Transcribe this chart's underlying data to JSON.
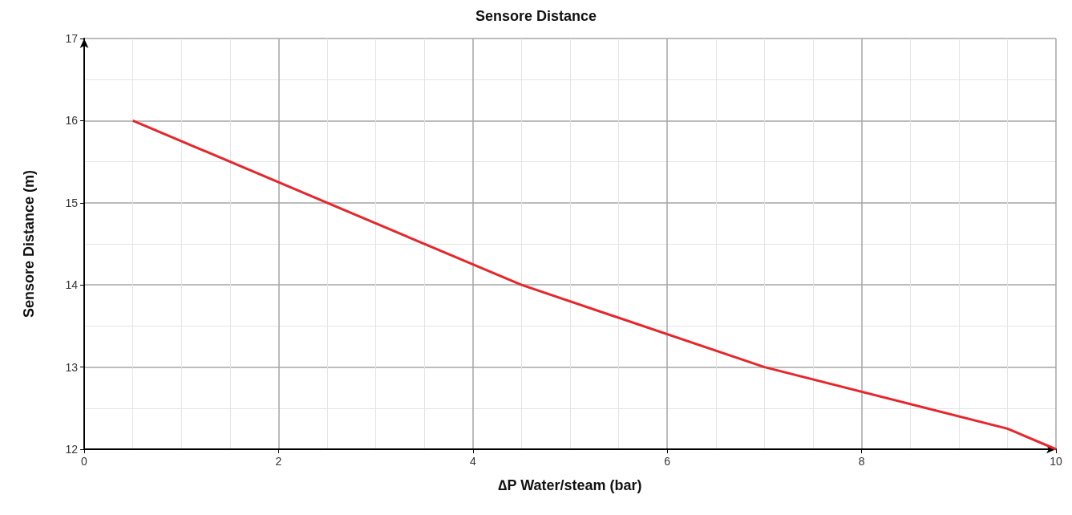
{
  "chart_data": {
    "type": "line",
    "title": "Sensore Distance",
    "xlabel": "∆P Water/steam (bar)",
    "ylabel": "Sensore Distance (m)",
    "x": [
      0.5,
      4.5,
      7,
      9.5,
      10
    ],
    "series": [
      {
        "color": "#e8252a",
        "values": [
          16,
          14,
          13,
          12.25,
          12
        ]
      }
    ],
    "xlim": [
      0,
      10
    ],
    "xticks": [
      0,
      2,
      4,
      6,
      8,
      10
    ],
    "ylim": [
      12,
      17
    ],
    "yticks": [
      12,
      13,
      14,
      15,
      16,
      17
    ],
    "grid": true,
    "marker": "none",
    "line_style": "solid"
  }
}
